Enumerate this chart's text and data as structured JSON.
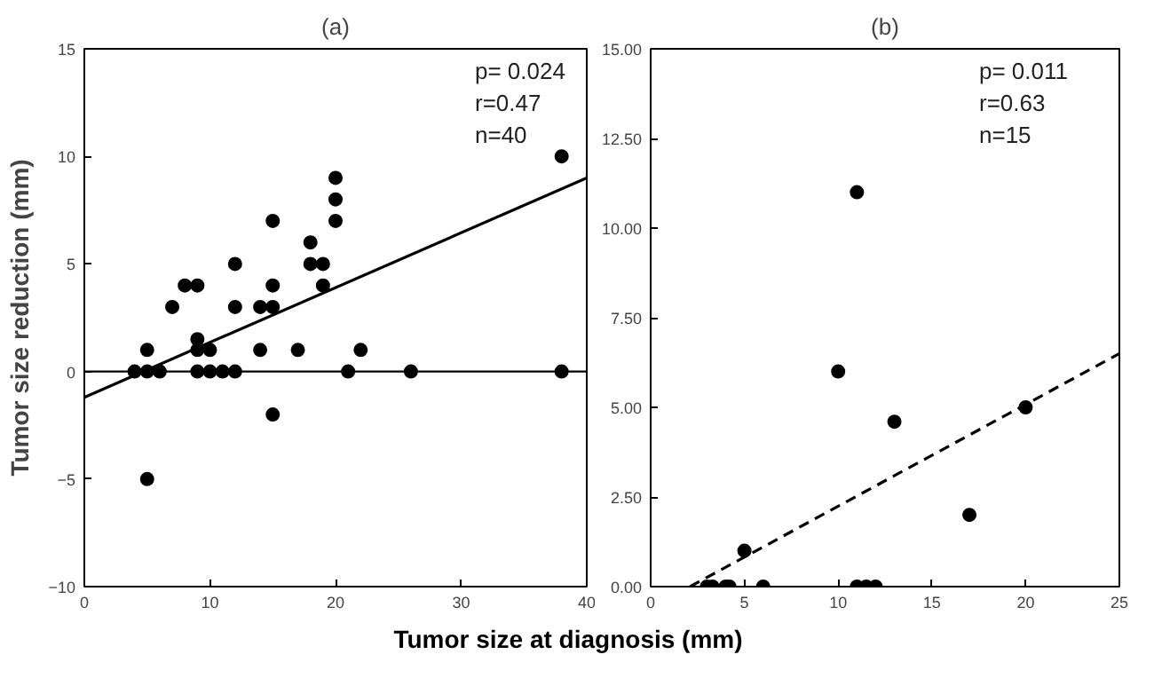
{
  "chart_data": [
    {
      "type": "scatter",
      "title": "(a)",
      "ylabel": "Tumor size reduction (mm)",
      "xlabel": "Tumor size  at diagnosis (mm)",
      "xlim": [
        0,
        40
      ],
      "ylim": [
        -10,
        15
      ],
      "xticks": [
        0,
        10,
        20,
        30,
        40
      ],
      "yticks": [
        -10,
        -5,
        0,
        5,
        10,
        15
      ],
      "grid": false,
      "annotations": [
        "p= 0.024",
        "r=0.47",
        "n=40"
      ],
      "ref_lines": [
        {
          "axis": "y",
          "value": 0,
          "label": null
        }
      ],
      "series": [
        {
          "color": "#000000",
          "marker": "circle",
          "x": [
            4,
            5,
            5,
            6,
            5,
            7,
            8,
            9,
            9,
            9,
            9,
            10,
            10,
            11,
            12,
            12,
            12,
            14,
            14,
            15,
            15,
            15,
            15,
            17,
            18,
            18,
            19,
            19,
            20,
            20,
            20,
            21,
            22,
            26,
            38,
            38
          ],
          "values": [
            0,
            0,
            1,
            0,
            -5,
            3,
            4,
            4,
            1.5,
            1,
            0,
            1,
            0,
            0,
            0,
            3,
            5,
            3,
            1,
            7,
            4,
            3,
            -2,
            1,
            6,
            5,
            5,
            4,
            9,
            8,
            7,
            0,
            1,
            0,
            10,
            0
          ]
        },
        {
          "type": "line",
          "color": "#000000",
          "line_style": "solid",
          "x": [
            0,
            40
          ],
          "values": [
            -1.2,
            9.0
          ]
        }
      ]
    },
    {
      "type": "scatter",
      "title": "(b)",
      "xlim": [
        0,
        25
      ],
      "ylim": [
        0,
        15
      ],
      "xticks": [
        0,
        5,
        10,
        15,
        20,
        25
      ],
      "yticks": [
        {
          "value": 0,
          "label": "0.00"
        },
        {
          "value": 2.5,
          "label": "2.50"
        },
        {
          "value": 5,
          "label": "5.00"
        },
        {
          "value": 7.5,
          "label": "7.50"
        },
        {
          "value": 10,
          "label": "10.00"
        },
        {
          "value": 12.5,
          "label": "12.50"
        },
        {
          "value": 15,
          "label": "15.00"
        }
      ],
      "grid": false,
      "annotations": [
        "p= 0.011",
        "r=0.63",
        "n=15"
      ],
      "series": [
        {
          "color": "#000000",
          "marker": "circle",
          "x": [
            3.0,
            3.3,
            4.0,
            4.2,
            6.0,
            5.0,
            10,
            11,
            13,
            20,
            17,
            11,
            11.5,
            12
          ],
          "values": [
            0,
            0,
            0,
            0,
            0,
            1.0,
            6.0,
            11.0,
            4.6,
            5.0,
            2.0,
            0,
            0,
            0
          ]
        },
        {
          "type": "line",
          "color": "#000000",
          "line_style": "dashed",
          "x": [
            2.1,
            25
          ],
          "values": [
            0,
            6.5
          ]
        }
      ]
    }
  ]
}
